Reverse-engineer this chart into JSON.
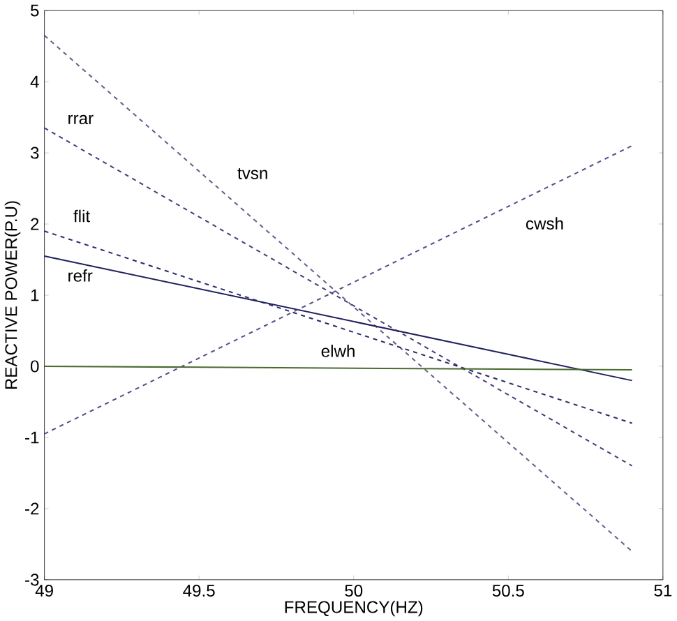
{
  "chart_data": {
    "type": "line",
    "xlabel": "FREQUENCY(HZ)",
    "ylabel": "REACTIVE POWER(P.U)",
    "xlim": [
      49,
      51
    ],
    "ylim": [
      -3,
      5
    ],
    "xticks": [
      49,
      49.5,
      50,
      50.5,
      51
    ],
    "yticks": [
      -3,
      -2,
      -1,
      0,
      1,
      2,
      3,
      4,
      5
    ],
    "grid": false,
    "marker": "none",
    "x": [
      49,
      50.9
    ],
    "series": [
      {
        "name": "tvsn",
        "values": [
          4.65,
          -2.6
        ],
        "color": "#6a5a8a",
        "line_style": "dashed"
      },
      {
        "name": "rrar",
        "values": [
          3.35,
          -1.4
        ],
        "color": "#4a3a7a",
        "line_style": "dashed"
      },
      {
        "name": "flit",
        "values": [
          1.9,
          -0.8
        ],
        "color": "#2a2a6a",
        "line_style": "dashed"
      },
      {
        "name": "refr",
        "values": [
          1.55,
          -0.2
        ],
        "color": "#202060",
        "line_style": "solid"
      },
      {
        "name": "elwh",
        "values": [
          0,
          -0.05
        ],
        "color": "#4a6a30",
        "line_style": "solid"
      },
      {
        "name": "cwsh",
        "values": [
          -0.95,
          3.1
        ],
        "color": "#5a4a8a",
        "line_style": "dashed"
      }
    ]
  }
}
